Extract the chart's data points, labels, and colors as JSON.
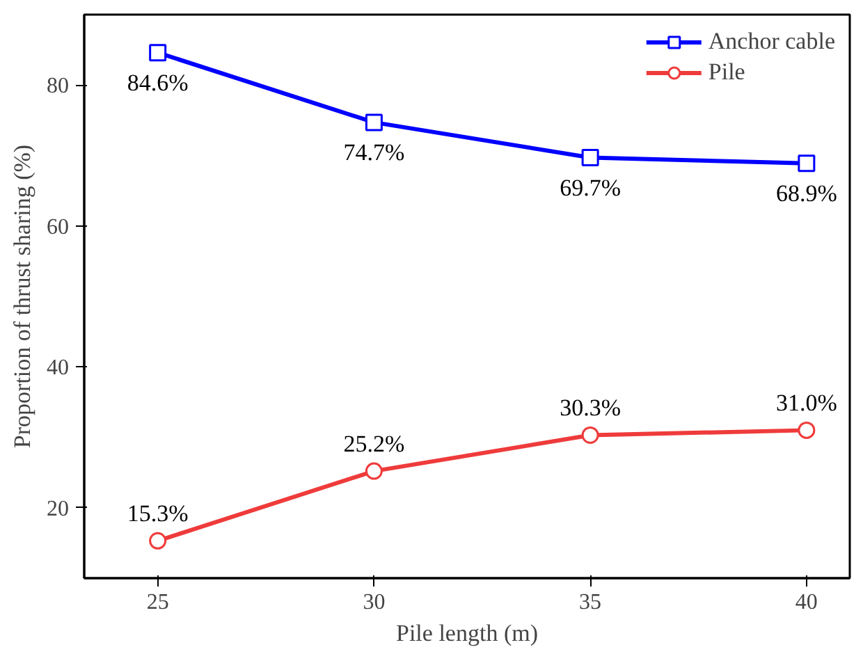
{
  "chart_data": {
    "type": "line",
    "xlabel": "Pile length (m)",
    "ylabel": "Proportion of thrust sharing (%)",
    "x": [
      25,
      30,
      35,
      40
    ],
    "xlim": [
      23.3,
      41.0
    ],
    "xticks": [
      25,
      30,
      35,
      40
    ],
    "ylim": [
      10,
      90
    ],
    "yticks": [
      20,
      40,
      60,
      80
    ],
    "grid": false,
    "legend": "top right",
    "line_style": "solid",
    "series": [
      {
        "name": "Anchor cable",
        "color": "#0000ff",
        "marker": "square",
        "values": [
          84.6,
          74.7,
          69.7,
          68.9
        ],
        "value_labels": [
          "84.6%",
          "74.7%",
          "69.7%",
          "68.9%"
        ]
      },
      {
        "name": "Pile",
        "color": "#ef3b3b",
        "marker": "circle",
        "values": [
          15.3,
          25.2,
          30.3,
          31.0
        ],
        "value_labels": [
          "15.3%",
          "25.2%",
          "30.3%",
          "31.0%"
        ]
      }
    ]
  }
}
